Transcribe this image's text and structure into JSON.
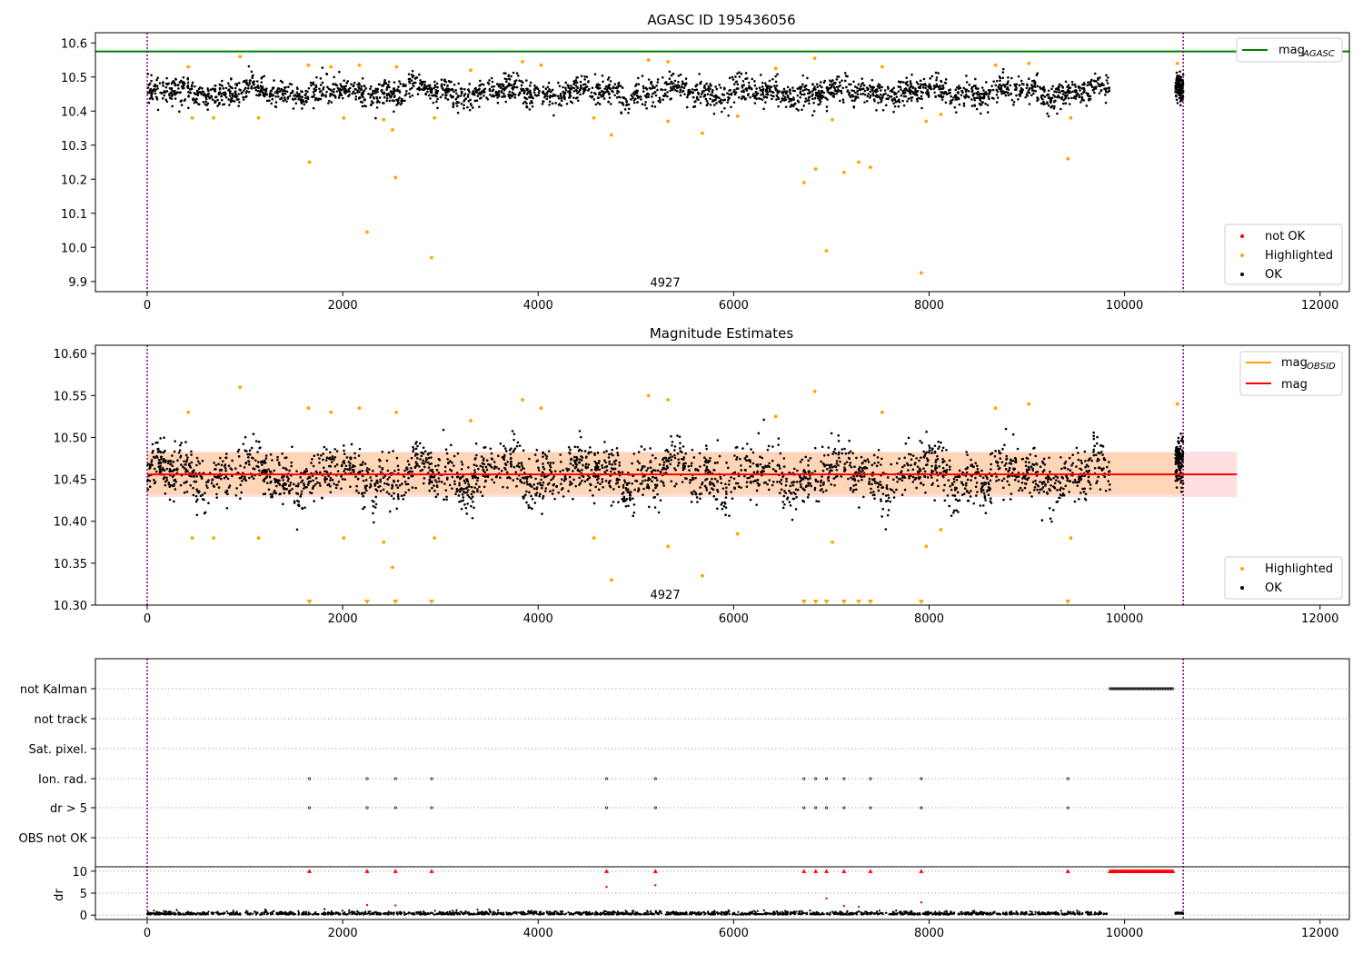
{
  "chart_data": [
    {
      "type": "scatter",
      "title": "AGASC ID 195436056",
      "xlim": [
        -530,
        12300
      ],
      "ylim": [
        9.87,
        10.63
      ],
      "xticks": [
        0,
        2000,
        4000,
        6000,
        8000,
        10000,
        12000
      ],
      "yticks": [
        9.9,
        10.0,
        10.1,
        10.2,
        10.3,
        10.4,
        10.5,
        10.6
      ],
      "legend_upper": {
        "placement": "top-right",
        "entries": [
          {
            "name": "mag",
            "sub": "AGASC",
            "color": "#008000"
          }
        ]
      },
      "legend_lower": {
        "placement": "bottom-right",
        "entries": [
          {
            "name": "not OK",
            "color": "#ff0000"
          },
          {
            "name": "Highlighted",
            "color": "#ffa500"
          },
          {
            "name": "OK",
            "color": "#000000"
          }
        ]
      },
      "reference_line": {
        "series": "mag AGASC",
        "y": 10.575,
        "color": "#008000"
      },
      "vlines": [
        0,
        10600
      ],
      "annotation": {
        "text": "4927",
        "x": 5300,
        "y": 9.895
      },
      "ok_band": {
        "x_start": 0,
        "x_end": 9850,
        "center": 10.455,
        "spread": 0.035,
        "x2_start": 10520,
        "x2_end": 10600
      },
      "highlighted_points": [
        [
          1660,
          10.25
        ],
        [
          2250,
          10.045
        ],
        [
          2540,
          10.205
        ],
        [
          2910,
          9.97
        ],
        [
          2510,
          10.345
        ],
        [
          4750,
          10.33
        ],
        [
          5680,
          10.335
        ],
        [
          6720,
          10.19
        ],
        [
          6840,
          10.23
        ],
        [
          6950,
          9.99
        ],
        [
          7130,
          10.22
        ],
        [
          7280,
          10.25
        ],
        [
          7400,
          10.235
        ],
        [
          7920,
          9.925
        ],
        [
          9420,
          10.26
        ],
        [
          420,
          10.53
        ],
        [
          460,
          10.38
        ],
        [
          680,
          10.38
        ],
        [
          950,
          10.56
        ],
        [
          1140,
          10.38
        ],
        [
          1650,
          10.535
        ],
        [
          1880,
          10.53
        ],
        [
          2010,
          10.38
        ],
        [
          2170,
          10.535
        ],
        [
          2420,
          10.375
        ],
        [
          2550,
          10.53
        ],
        [
          2940,
          10.38
        ],
        [
          3310,
          10.52
        ],
        [
          3840,
          10.545
        ],
        [
          4030,
          10.535
        ],
        [
          4570,
          10.38
        ],
        [
          5130,
          10.55
        ],
        [
          5330,
          10.37
        ],
        [
          5330,
          10.545
        ],
        [
          6040,
          10.385
        ],
        [
          6430,
          10.525
        ],
        [
          6830,
          10.555
        ],
        [
          7010,
          10.375
        ],
        [
          7520,
          10.53
        ],
        [
          7970,
          10.37
        ],
        [
          8120,
          10.39
        ],
        [
          8680,
          10.535
        ],
        [
          9020,
          10.54
        ],
        [
          9450,
          10.38
        ],
        [
          10540,
          10.54
        ]
      ]
    },
    {
      "type": "scatter",
      "title": "Magnitude Estimates",
      "xlim": [
        -530,
        12300
      ],
      "ylim": [
        10.3,
        10.61
      ],
      "xticks": [
        0,
        2000,
        4000,
        6000,
        8000,
        10000,
        12000
      ],
      "yticks": [
        10.3,
        10.35,
        10.4,
        10.45,
        10.5,
        10.55,
        10.6
      ],
      "legend_upper": {
        "placement": "top-right",
        "entries": [
          {
            "name": "mag",
            "sub": "OBSID",
            "color": "#ffa500"
          },
          {
            "name": "mag",
            "color": "#ff0000"
          }
        ]
      },
      "legend_lower": {
        "placement": "bottom-right",
        "entries": [
          {
            "name": "Highlighted",
            "color": "#ffa500"
          },
          {
            "name": "OK",
            "color": "#000000"
          }
        ]
      },
      "mag_line": {
        "y": 10.456,
        "x_start": 0,
        "x_end": 11150,
        "band": [
          10.429,
          10.483
        ]
      },
      "obsid_band": {
        "x_start": 0,
        "x_end": 10600,
        "band": [
          10.432,
          10.482
        ]
      },
      "vlines": [
        0,
        10600
      ],
      "annotation": {
        "text": "4927",
        "x": 5300,
        "y": 10.312
      },
      "ok_band": {
        "x_start": 0,
        "x_end": 9850,
        "center": 10.455,
        "spread": 0.028,
        "x2_start": 10520,
        "x2_end": 10600
      },
      "lower_limit_markers": [
        1660,
        2250,
        2540,
        2910,
        6720,
        6840,
        6950,
        7130,
        7280,
        7400,
        7920,
        9420
      ]
    },
    {
      "type": "scatter",
      "xlim": [
        -530,
        12300
      ],
      "xticks": [
        0,
        2000,
        4000,
        6000,
        8000,
        10000,
        12000
      ],
      "flag_rows": [
        "not Kalman",
        "not track",
        "Sat. pixel.",
        "Ion. rad.",
        "dr > 5",
        "OBS not OK"
      ],
      "flag_points": {
        "not Kalman": {
          "range": [
            9850,
            10500
          ]
        },
        "Ion. rad.": {
          "x": [
            1660,
            2250,
            2540,
            2910,
            4700,
            5200,
            6720,
            6840,
            6950,
            7130,
            7400,
            7920,
            9420
          ]
        },
        "dr > 5": {
          "x": [
            1660,
            2250,
            2540,
            2910,
            4700,
            5200,
            6720,
            6840,
            6950,
            7130,
            7400,
            7920,
            9420
          ]
        }
      },
      "dr_panel": {
        "ylabel": "dr",
        "ylim": [
          -1,
          11
        ],
        "yticks": [
          0,
          5,
          10
        ],
        "clip_markers_x": [
          1660,
          2250,
          2540,
          2910,
          4700,
          5200,
          6720,
          6840,
          6950,
          7130,
          7400,
          7920,
          9420
        ],
        "clip_range": [
          9850,
          10500
        ],
        "scattered_points": [
          [
            4700,
            6.4
          ],
          [
            5200,
            6.8
          ],
          [
            6950,
            3.8
          ],
          [
            7920,
            2.9
          ],
          [
            2250,
            2.3
          ],
          [
            2540,
            2.2
          ],
          [
            7130,
            2.1
          ],
          [
            7280,
            1.9
          ]
        ]
      },
      "vlines": [
        0,
        10600
      ]
    }
  ]
}
